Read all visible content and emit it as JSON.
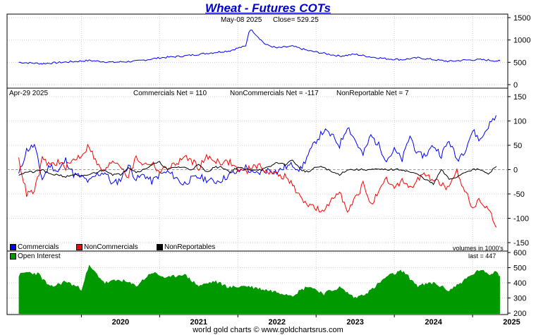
{
  "header": {
    "title": "Wheat - Futures COTs",
    "price_date": "May-08  2025",
    "close_label": "Close= 529.25",
    "cot_date": "Apr-29  2025",
    "commercials_net": "Commercials Net = 110",
    "noncommercials_net": "NonCommercials Net = -117",
    "nonreportable_net": "NonReportable Net = 7",
    "volumes_note": "volumes in 1000's",
    "last_oi": "last = 447",
    "footer": "world gold charts © www.goldchartsrus.com"
  },
  "legend": {
    "commercials": "Commercials",
    "noncommercials": "NonCommercials",
    "nonreportables": "NonReportables",
    "open_interest": "Open Interest"
  },
  "colors": {
    "commercials": "#0000ff",
    "noncommercials": "#ff0000",
    "nonreportables": "#000000",
    "open_interest": "#009900",
    "title": "#0000cc"
  },
  "chart_data": [
    {
      "type": "line",
      "panel": "price",
      "x_years": [
        2019.2,
        2019.5,
        2019.8,
        2020.1,
        2020.4,
        2020.7,
        2021.0,
        2021.3,
        2021.6,
        2021.9,
        2022.0,
        2022.1,
        2022.15,
        2022.2,
        2022.35,
        2022.5,
        2022.7,
        2022.9,
        2023.1,
        2023.3,
        2023.5,
        2023.7,
        2023.9,
        2024.1,
        2024.3,
        2024.5,
        2024.7,
        2024.9,
        2025.1,
        2025.35
      ],
      "values": [
        500,
        470,
        505,
        540,
        500,
        525,
        600,
        640,
        700,
        760,
        820,
        860,
        1250,
        1180,
        900,
        820,
        860,
        760,
        700,
        640,
        680,
        620,
        580,
        560,
        600,
        560,
        520,
        550,
        560,
        529
      ],
      "ylim": [
        0,
        1500
      ],
      "y_ticks": [
        0,
        500,
        1000,
        1500
      ]
    },
    {
      "type": "line",
      "panel": "cot_net",
      "x_years": [
        2019.2,
        2019.3,
        2019.4,
        2019.5,
        2019.6,
        2019.7,
        2019.8,
        2019.9,
        2020.0,
        2020.1,
        2020.2,
        2020.3,
        2020.4,
        2020.5,
        2020.6,
        2020.7,
        2020.8,
        2020.9,
        2021.0,
        2021.1,
        2021.2,
        2021.3,
        2021.4,
        2021.5,
        2021.6,
        2021.7,
        2021.8,
        2021.9,
        2022.0,
        2022.1,
        2022.2,
        2022.3,
        2022.4,
        2022.5,
        2022.6,
        2022.7,
        2022.8,
        2022.9,
        2023.0,
        2023.1,
        2023.2,
        2023.3,
        2023.4,
        2023.5,
        2023.6,
        2023.7,
        2023.8,
        2023.9,
        2024.0,
        2024.1,
        2024.2,
        2024.3,
        2024.4,
        2024.5,
        2024.6,
        2024.7,
        2024.8,
        2024.9,
        2025.0,
        2025.1,
        2025.2,
        2025.3
      ],
      "series": [
        {
          "name": "Commercials",
          "values": [
            -10,
            40,
            50,
            -20,
            10,
            -5,
            20,
            -10,
            -15,
            -25,
            -10,
            -5,
            -30,
            -20,
            10,
            -20,
            -10,
            -25,
            -10,
            -5,
            -15,
            -30,
            -20,
            -15,
            -20,
            -25,
            -20,
            -10,
            -5,
            5,
            -10,
            -5,
            0,
            -5,
            5,
            10,
            0,
            30,
            60,
            80,
            70,
            50,
            90,
            60,
            30,
            70,
            50,
            20,
            40,
            20,
            70,
            30,
            30,
            50,
            30,
            60,
            20,
            40,
            80,
            60,
            90,
            110
          ]
        },
        {
          "name": "NonCommercials",
          "values": [
            20,
            -50,
            -45,
            20,
            10,
            15,
            5,
            20,
            30,
            50,
            10,
            -5,
            20,
            10,
            -15,
            25,
            10,
            15,
            -5,
            5,
            10,
            25,
            20,
            5,
            25,
            20,
            15,
            15,
            0,
            -5,
            10,
            5,
            -5,
            -10,
            -15,
            -30,
            -60,
            -70,
            -80,
            -90,
            -60,
            -40,
            -90,
            -60,
            -30,
            -70,
            -50,
            -20,
            -40,
            -20,
            -40,
            -20,
            -10,
            -20,
            -30,
            -40,
            -5,
            -40,
            -80,
            -60,
            -80,
            -117
          ]
        },
        {
          "name": "NonReportables",
          "values": [
            -10,
            -5,
            -5,
            0,
            -10,
            -10,
            -15,
            -10,
            -15,
            -10,
            -5,
            0,
            -10,
            -10,
            5,
            -5,
            0,
            10,
            15,
            0,
            5,
            5,
            0,
            10,
            -5,
            5,
            5,
            -5,
            5,
            0,
            0,
            0,
            5,
            15,
            10,
            20,
            0,
            -5,
            5,
            5,
            -5,
            -10,
            0,
            0,
            0,
            0,
            0,
            0,
            0,
            0,
            -5,
            -10,
            -20,
            -30,
            0,
            -20,
            -15,
            -5,
            0,
            0,
            -10,
            7
          ]
        }
      ],
      "ylim": [
        -150,
        150
      ],
      "y_ticks": [
        -150,
        -100,
        -50,
        0,
        50,
        100,
        150
      ]
    },
    {
      "type": "area",
      "panel": "open_interest",
      "x_years": [
        2019.2,
        2019.3,
        2019.45,
        2019.6,
        2019.8,
        2020.0,
        2020.05,
        2020.1,
        2020.3,
        2020.5,
        2020.7,
        2020.9,
        2021.1,
        2021.3,
        2021.5,
        2021.7,
        2021.9,
        2022.1,
        2022.3,
        2022.5,
        2022.7,
        2022.9,
        2023.1,
        2023.3,
        2023.5,
        2023.7,
        2023.9,
        2024.1,
        2024.3,
        2024.5,
        2024.7,
        2024.9,
        2025.1,
        2025.2,
        2025.3,
        2025.35
      ],
      "values": [
        450,
        470,
        460,
        370,
        410,
        360,
        440,
        510,
        400,
        420,
        380,
        470,
        430,
        460,
        380,
        410,
        370,
        380,
        360,
        340,
        320,
        380,
        330,
        370,
        300,
        350,
        440,
        480,
        380,
        400,
        350,
        420,
        490,
        450,
        480,
        447
      ],
      "ylim": [
        200,
        600
      ],
      "y_ticks": [
        200,
        300,
        400,
        500,
        600
      ]
    }
  ],
  "x_axis": {
    "ticks": [
      "2020",
      "2021",
      "2022",
      "2023",
      "2024",
      "2025"
    ],
    "tick_years": [
      2020,
      2021,
      2022,
      2023,
      2024,
      2025
    ],
    "range_years": [
      2019.05,
      2025.45
    ]
  }
}
